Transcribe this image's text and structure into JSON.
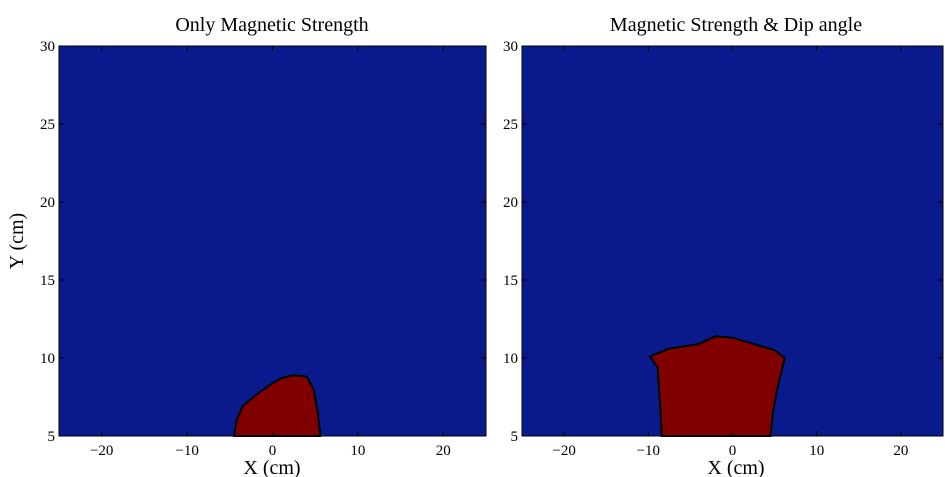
{
  "chart_data": [
    {
      "type": "contourf",
      "title": "Only Magnetic Strength",
      "xlabel": "X (cm)",
      "ylabel": "Y (cm)",
      "xlim": [
        -25,
        25
      ],
      "ylim": [
        5,
        30
      ],
      "xticks": [
        -20,
        -10,
        0,
        10,
        20
      ],
      "yticks": [
        5,
        10,
        15,
        20,
        25,
        30
      ],
      "colors": {
        "background": "#0a1a8c",
        "region": "#800000",
        "outline": "#000000"
      },
      "region_boundary": [
        [
          -4.5,
          5.0
        ],
        [
          -4.2,
          6.0
        ],
        [
          -3.5,
          6.9
        ],
        [
          -2.0,
          7.6
        ],
        [
          -0.5,
          8.2
        ],
        [
          1.0,
          8.7
        ],
        [
          2.5,
          8.9
        ],
        [
          4.0,
          8.8
        ],
        [
          4.8,
          8.0
        ],
        [
          5.3,
          6.5
        ],
        [
          5.6,
          5.0
        ]
      ]
    },
    {
      "type": "contourf",
      "title": "Magnetic Strength & Dip angle",
      "xlabel": "X (cm)",
      "ylabel": "",
      "xlim": [
        -25,
        25
      ],
      "ylim": [
        5,
        30
      ],
      "xticks": [
        -20,
        -10,
        0,
        10,
        20
      ],
      "yticks": [
        5,
        10,
        15,
        20,
        25,
        30
      ],
      "colors": {
        "background": "#0a1a8c",
        "region": "#800000",
        "outline": "#000000"
      },
      "region_boundary": [
        [
          -8.4,
          5.0
        ],
        [
          -8.6,
          7.0
        ],
        [
          -8.9,
          9.4
        ],
        [
          -9.8,
          10.1
        ],
        [
          -7.5,
          10.6
        ],
        [
          -4.0,
          10.9
        ],
        [
          -2.0,
          11.4
        ],
        [
          0.0,
          11.3
        ],
        [
          2.5,
          10.9
        ],
        [
          5.0,
          10.5
        ],
        [
          6.2,
          10.0
        ],
        [
          5.3,
          8.0
        ],
        [
          4.8,
          6.5
        ],
        [
          4.5,
          5.0
        ]
      ]
    }
  ]
}
